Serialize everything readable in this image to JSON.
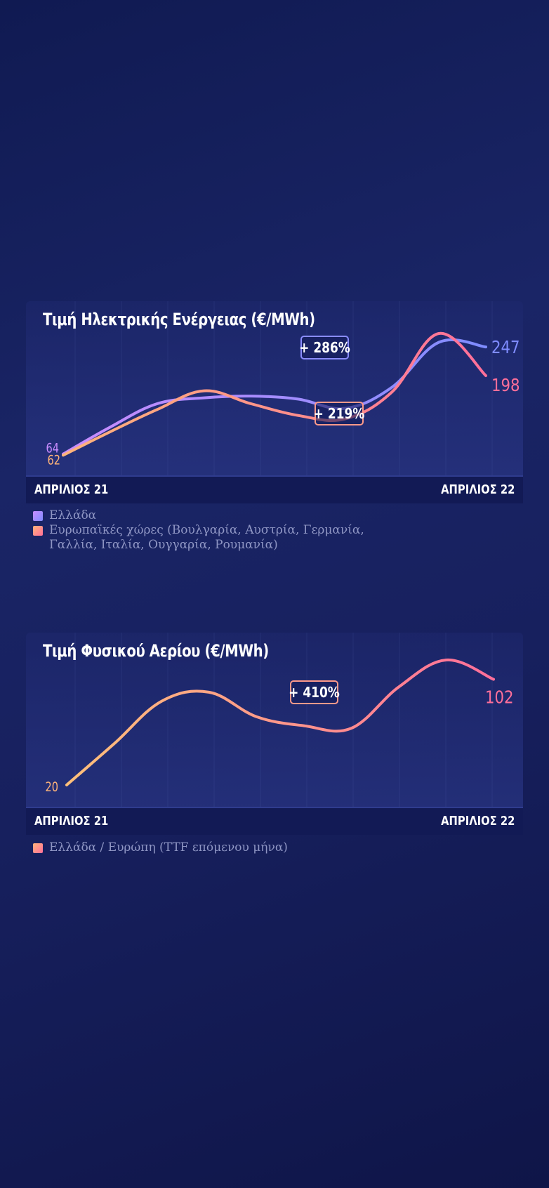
{
  "colors": {
    "greece": "#8a8cff",
    "europe_start": "#ffb47a",
    "europe_end": "#ff6f9a",
    "gas": "#ffa37f"
  },
  "chart_data": [
    {
      "type": "line",
      "title": "Τιμή Ηλεκτρικής Ενέργειας (€/MWh)",
      "x_start_label": "ΑΠΡΙΛΙΟΣ 21",
      "x_end_label": "ΑΠΡΙΛΙΟΣ 22",
      "x": [
        0,
        1,
        2,
        3,
        4,
        5,
        6,
        7,
        8,
        9
      ],
      "series": [
        {
          "name": "Ελλάδα",
          "values": [
            64,
            110,
            150,
            160,
            163,
            158,
            142,
            178,
            255,
            247
          ],
          "start_label": "64",
          "end_label": "247"
        },
        {
          "name": "Ευρωπαϊκές χώρες (Βουλγαρία, Αυστρία, Γερμανία, Γαλλία, Ιταλία, Ουγγαρία, Ρουμανία)",
          "values": [
            62,
            102,
            140,
            172,
            150,
            130,
            124,
            170,
            270,
            198
          ],
          "start_label": "62",
          "end_label": "198"
        }
      ],
      "annotations": [
        "+ 286%",
        "+ 219%"
      ],
      "grid": true
    },
    {
      "type": "line",
      "title": "Τιμή Φυσικού Αερίου (€/MWh)",
      "x_start_label": "ΑΠΡΙΛΙΟΣ 21",
      "x_end_label": "ΑΠΡΙΛΙΟΣ 22",
      "x": [
        0,
        1,
        2,
        3,
        4,
        5,
        6,
        7,
        8,
        9
      ],
      "series": [
        {
          "name": "Ελλάδα / Ευρώπη (TTF επόμενου μήνα)",
          "values": [
            20,
            52,
            85,
            92,
            73,
            66,
            64,
            96,
            117,
            102
          ],
          "start_label": "20",
          "end_label": "102"
        }
      ],
      "annotations": [
        "+ 410%"
      ],
      "grid": true
    }
  ]
}
